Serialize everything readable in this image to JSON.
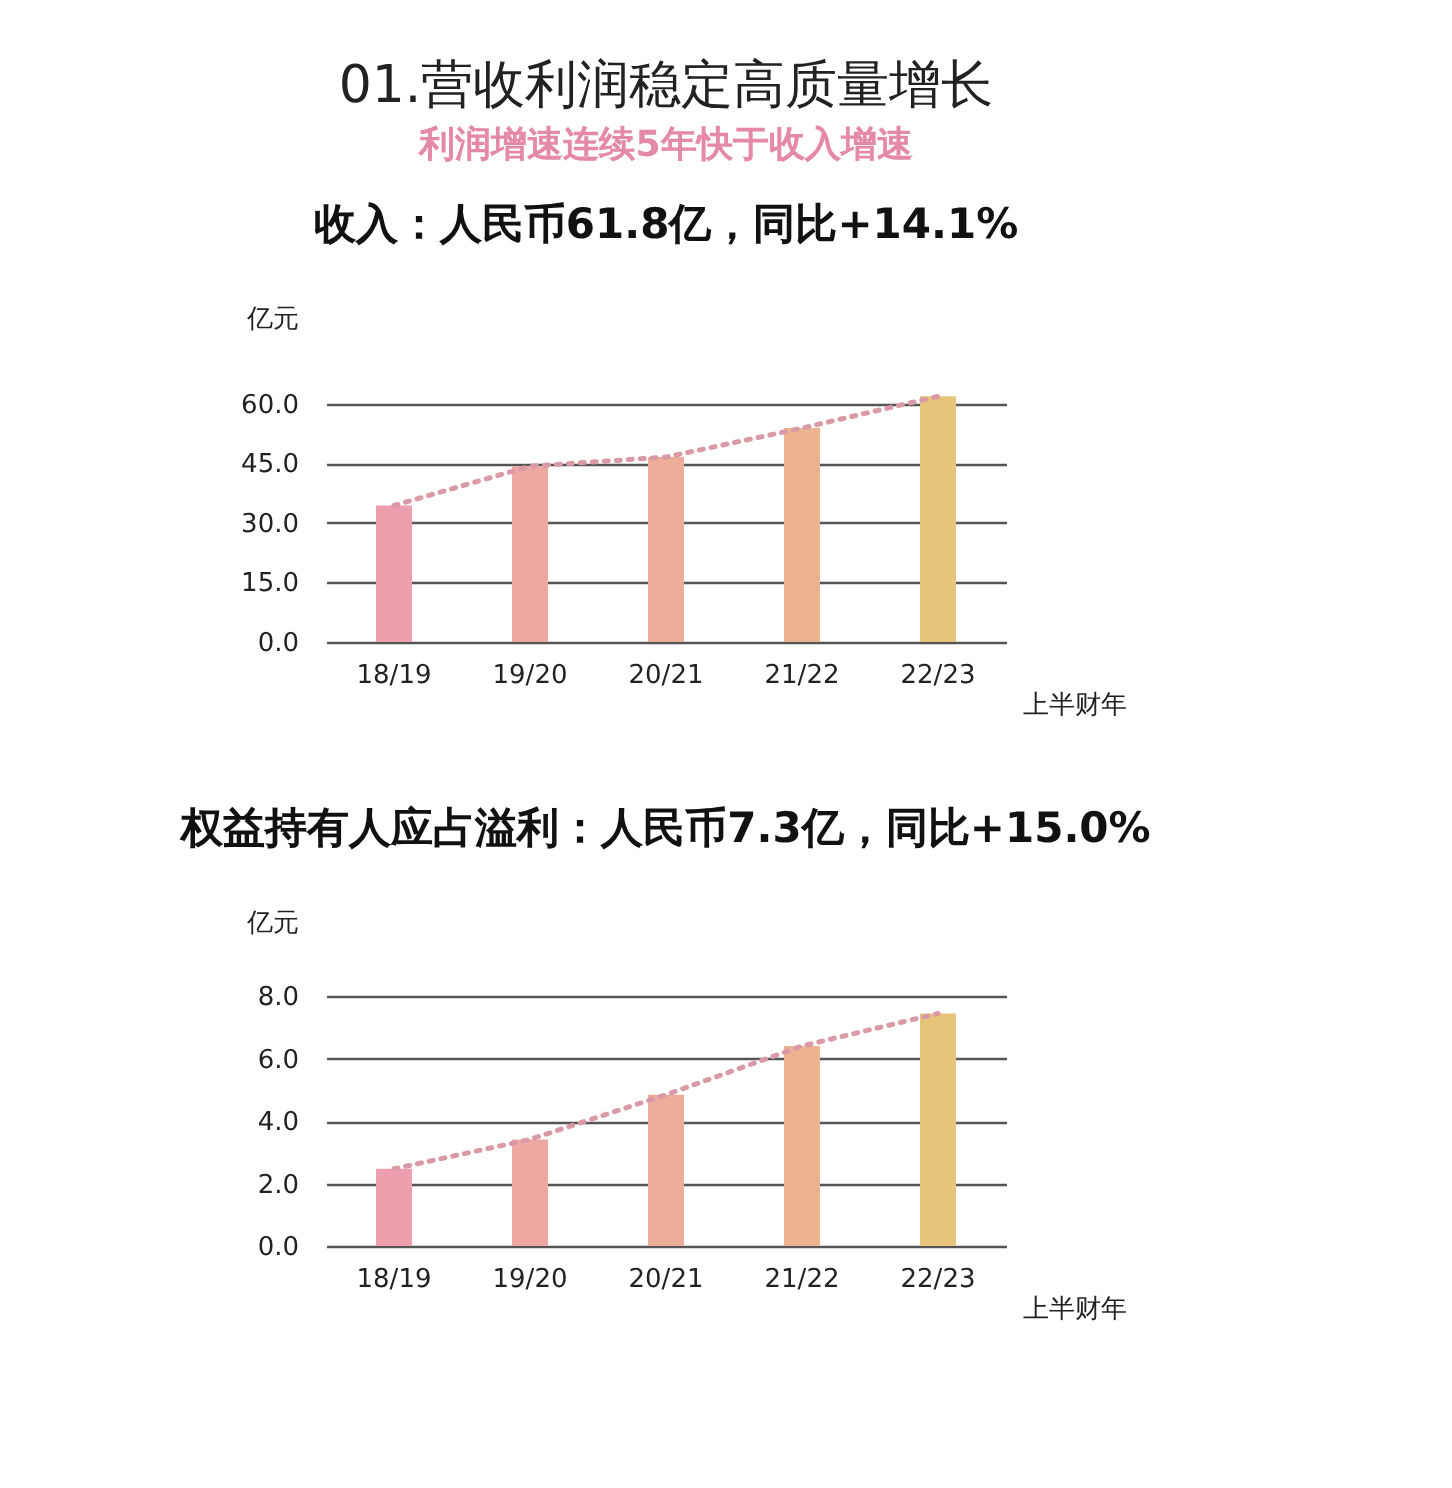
{
  "chart_data": [
    {
      "type": "bar",
      "title": "收入：人民币61.8亿，同比+14.1%",
      "annotations": [
        "01.营收利润稳定高质量增长",
        "利润增速连续5年快于收入增速"
      ],
      "xlabel": "上半财年",
      "ylabel": "亿元",
      "categories": [
        "18/19",
        "19/20",
        "20/21",
        "21/22",
        "22/23"
      ],
      "series": [
        {
          "values": [
            34.4,
            44.3,
            46.6,
            53.9,
            61.9
          ],
          "colors": [
            "#ee9fae",
            "#eea8a2",
            "#eeac9a",
            "#ecb48e",
            "#e6c47a"
          ]
        },
        {
          "type": "line",
          "values": [
            34.4,
            44.3,
            46.6,
            53.9,
            61.9
          ],
          "color": "#d99aa6",
          "line_style": "dotted"
        }
      ],
      "ylim": [
        0,
        63
      ],
      "yticks": [
        {
          "value": 0,
          "label": "0.0"
        },
        {
          "value": 15,
          "label": "15.0"
        },
        {
          "value": 30,
          "label": "30.0"
        },
        {
          "value": 45,
          "label": "45.0"
        },
        {
          "value": 60,
          "label": "60.0"
        }
      ],
      "grid": "y"
    },
    {
      "type": "bar",
      "title": "权益持有人应占溢利：人民币7.3亿，同比+15.0%",
      "xlabel": "上半财年",
      "ylabel": "亿元",
      "categories": [
        "18/19",
        "19/20",
        "20/21",
        "21/22",
        "22/23"
      ],
      "series": [
        {
          "values": [
            2.47,
            3.41,
            4.84,
            6.4,
            7.44
          ],
          "colors": [
            "#ee9fae",
            "#eea8a2",
            "#eeac9a",
            "#ecb48e",
            "#e6c47a"
          ]
        },
        {
          "type": "line",
          "values": [
            2.47,
            3.41,
            4.84,
            6.4,
            7.44
          ],
          "color": "#d99aa6",
          "line_style": "dotted"
        }
      ],
      "ylim": [
        0,
        8
      ],
      "yticks": [
        {
          "value": 0,
          "label": "0.0"
        },
        {
          "value": 2,
          "label": "2.0"
        },
        {
          "value": 4,
          "label": "4.0"
        },
        {
          "value": 6,
          "label": "6.0"
        },
        {
          "value": 8,
          "label": "8.0"
        }
      ],
      "grid": "y"
    }
  ]
}
